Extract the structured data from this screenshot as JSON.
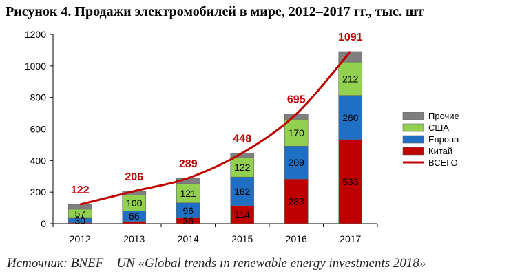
{
  "header": {
    "title": "Рисунок 4. Продажи электромобилей в мире, 2012–2017 гг., тыс. шт"
  },
  "footer": {
    "source": "Источник: BNEF – UN «Global trends in renewable energy investments 2018»"
  },
  "chart_data": {
    "type": "bar",
    "stacked": true,
    "categories": [
      "2012",
      "2013",
      "2014",
      "2015",
      "2016",
      "2017"
    ],
    "series": [
      {
        "name": "Китай",
        "color": "#c00000",
        "values": [
          5,
          15,
          36,
          114,
          283,
          533
        ]
      },
      {
        "name": "Европа",
        "color": "#1f6fc5",
        "values": [
          30,
          66,
          96,
          182,
          209,
          280
        ]
      },
      {
        "name": "США",
        "color": "#92d050",
        "values": [
          57,
          100,
          121,
          122,
          170,
          212
        ]
      },
      {
        "name": "Прочие",
        "color": "#7f7f7f",
        "values": [
          30,
          25,
          36,
          30,
          33,
          66
        ]
      }
    ],
    "segment_labels": [
      [
        "",
        "",
        "36",
        "114",
        "283",
        "533"
      ],
      [
        "30",
        "66",
        "96",
        "182",
        "209",
        "280"
      ],
      [
        "57",
        "100",
        "121",
        "122",
        "170",
        "212"
      ],
      [
        "",
        "",
        "",
        "",
        "",
        ""
      ]
    ],
    "total": {
      "name": "ВСЕГО",
      "color": "#c00000",
      "values": [
        122,
        206,
        289,
        448,
        695,
        1091
      ]
    },
    "ylim": [
      0,
      1200
    ],
    "yticks": [
      0,
      200,
      400,
      600,
      800,
      1000,
      1200
    ],
    "legend_order": [
      "Прочие",
      "США",
      "Европа",
      "Китай",
      "ВСЕГО"
    ],
    "legend_position": "right",
    "grid": false
  }
}
